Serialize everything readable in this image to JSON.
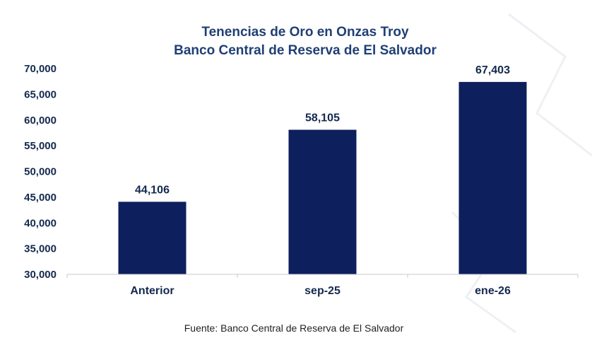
{
  "chart_data": {
    "type": "bar",
    "title": "Tenencias de Oro en Onzas Troy",
    "subtitle": "Banco Central de Reserva de El Salvador",
    "categories": [
      "Anterior",
      "sep-25",
      "ene-26"
    ],
    "values": [
      44106,
      58105,
      67403
    ],
    "data_labels": [
      "44,106",
      "58,105",
      "67,403"
    ],
    "ylim": [
      30000,
      70000
    ],
    "y_ticks": [
      30000,
      35000,
      40000,
      45000,
      50000,
      55000,
      60000,
      65000,
      70000
    ],
    "y_tick_labels": [
      "30,000",
      "35,000",
      "40,000",
      "45,000",
      "50,000",
      "55,000",
      "60,000",
      "65,000",
      "70,000"
    ],
    "xlabel": "",
    "ylabel": "",
    "grid": false,
    "bar_color": "#0d1f5c"
  },
  "source": "Fuente: Banco Central de Reserva de El Salvador"
}
